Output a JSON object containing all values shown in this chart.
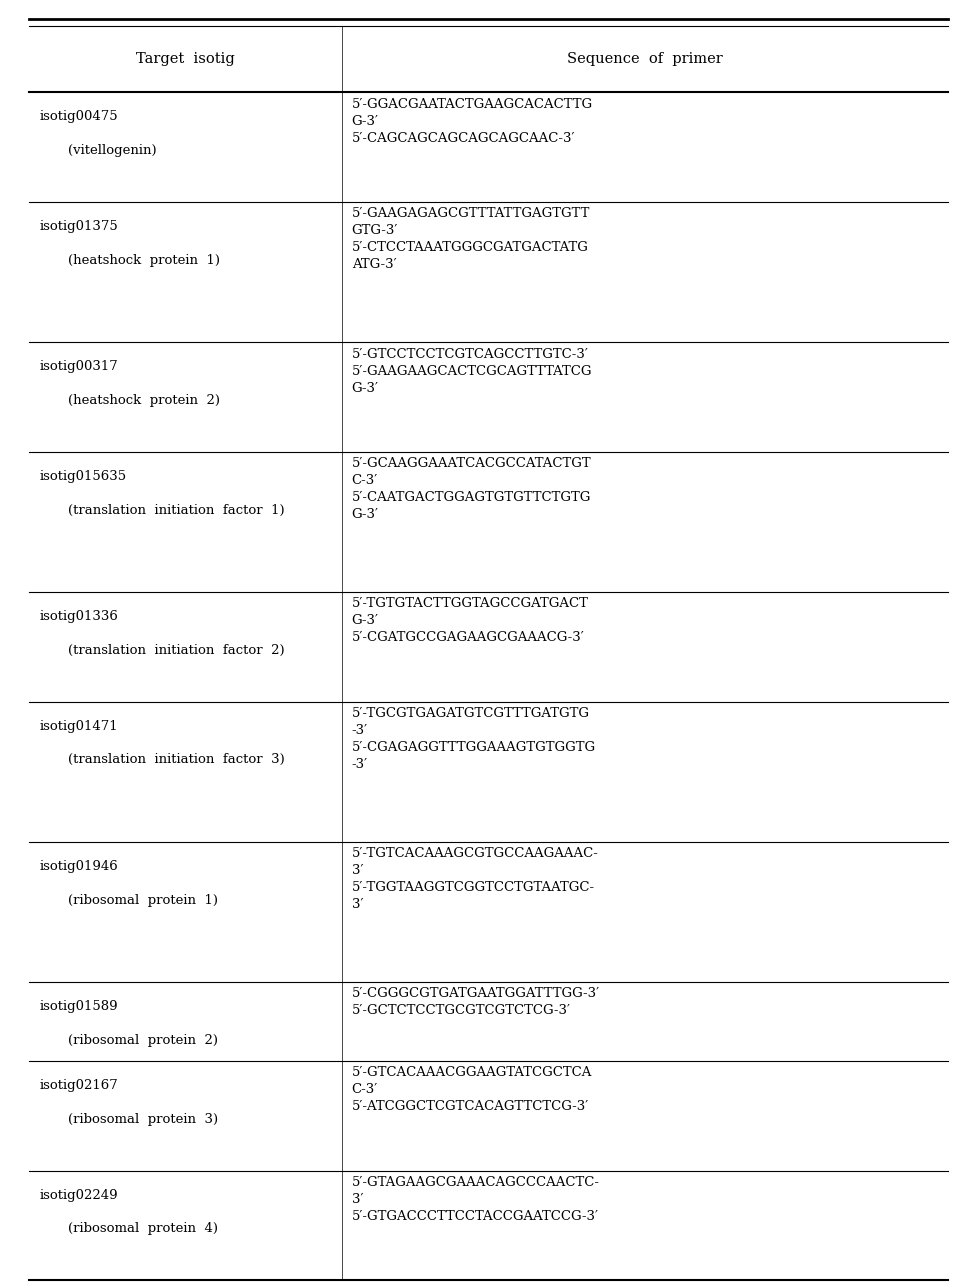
{
  "col_headers": [
    "Target  isotig",
    "Sequence  of  primer"
  ],
  "rows": [
    {
      "left_main": "isotig00475",
      "left_sub": "(vitellogenin)",
      "right": "5′-GGACGAATACTGAAGCACACTTG\nG-3′\n5′-CAGCAGCAGCAGCAGCAAC-3′"
    },
    {
      "left_main": "isotig01375",
      "left_sub": "(heatshock  protein  1)",
      "right": "5′-GAAGAGAGCGTTTATTGAGTGTT\nGTG-3′\n5′-CTCCTAAATGGGCGATGACTATG\nATG-3′"
    },
    {
      "left_main": "isotig00317",
      "left_sub": "(heatshock  protein  2)",
      "right": "5′-GTCCTCCTCGTCAGCCTTGTC-3′\n5′-GAAGAAGCACTCGCAGTTTATCG\nG-3′"
    },
    {
      "left_main": "isotig015635",
      "left_sub": "(translation  initiation  factor  1)",
      "right": "5′-GCAAGGAAATCACGCCATACTGT\nC-3′\n5′-CAATGACTGGAGTGTGTTCTGTG\nG-3′"
    },
    {
      "left_main": "isotig01336",
      "left_sub": "(translation  initiation  factor  2)",
      "right": "5′-TGTGTACTTGGTAGCCGATGACT\nG-3′\n5′-CGATGCCGAGAAGCGAAACG-3′"
    },
    {
      "left_main": "isotig01471",
      "left_sub": "(translation  initiation  factor  3)",
      "right": "5′-TGCGTGAGATGTCGTTTGATGTG\n-3′\n5′-CGAGAGGTTTGGAAAGTGTGGTG\n-3′"
    },
    {
      "left_main": "isotig01946",
      "left_sub": "(ribosomal  protein  1)",
      "right": "5′-TGTCACAAAGCGTGCCAAGAAAC-\n3′\n5′-TGGTAAGGTCGGTCCTGTAATGC-\n3′"
    },
    {
      "left_main": "isotig01589",
      "left_sub": "(ribosomal  protein  2)",
      "right": "5′-CGGGCGTGATGAATGGATTTGG-3′\n5′-GCTCTCCTGCGTCGTCTCG-3′"
    },
    {
      "left_main": "isotig02167",
      "left_sub": "(ribosomal  protein  3)",
      "right": "5′-GTCACAAACGGAAGTATCGCTCA\nC-3′\n5′-ATCGGCTCGTCACAGTTCTCG-3′"
    },
    {
      "left_main": "isotig02249",
      "left_sub": "(ribosomal  protein  4)",
      "right": "5′-GTAGAAGCGAAACAGCCCAACTC-\n3′\n5′-GTGACCCTTCCTACCGAATCCG-3′"
    }
  ],
  "bg_color": "#ffffff",
  "text_color": "#000000",
  "line_color": "#000000",
  "font_size": 9.5,
  "header_font_size": 10.5,
  "fig_width": 9.77,
  "fig_height": 12.84
}
